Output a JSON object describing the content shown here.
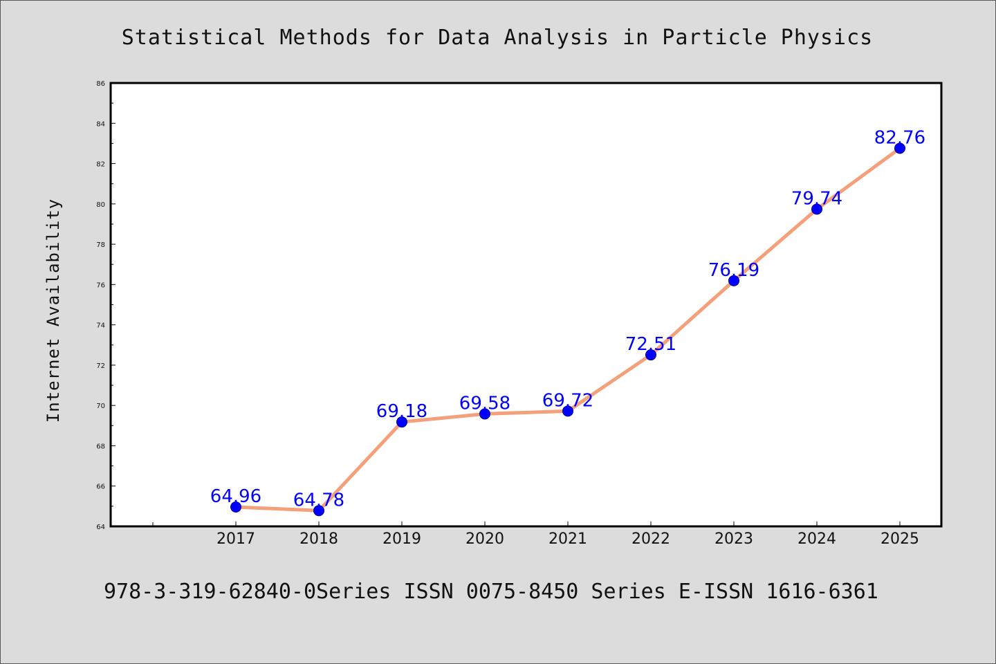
{
  "colors": {
    "figure_background": "#dcdcdc",
    "plot_background": "#ffffff",
    "axis": "#000000",
    "line": "#f4a07a",
    "marker": "#0000ff",
    "label": "#0000ff"
  },
  "footer": "978-3-319-62840-0Series ISSN 0075-8450 Series E-ISSN 1616-6361",
  "chart_data": {
    "type": "line",
    "title": "Statistical Methods for Data Analysis in Particle Physics",
    "xlabel": "",
    "ylabel": "Internet Availability",
    "categories": [
      "2017",
      "2018",
      "2019",
      "2020",
      "2021",
      "2022",
      "2023",
      "2024",
      "2025"
    ],
    "series": [
      {
        "values": [
          64.96,
          64.78,
          69.18,
          69.58,
          69.72,
          72.51,
          76.19,
          79.74,
          82.76
        ],
        "labels": [
          "64.96",
          "64.78",
          "69.18",
          "69.58",
          "69.72",
          "72.51",
          "76.19",
          "79.74",
          "82.76"
        ]
      }
    ],
    "ylim": [
      64,
      86
    ],
    "yticks": [
      "64",
      "66",
      "68",
      "70",
      "72",
      "74",
      "76",
      "78",
      "80",
      "82",
      "84",
      "86"
    ],
    "grid": false,
    "legend": "none",
    "marker": "circle"
  }
}
